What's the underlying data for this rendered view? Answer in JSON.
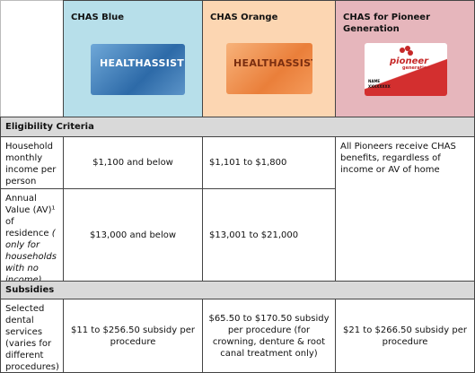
{
  "header": {
    "columns": [
      "CHAS Blue",
      "CHAS Orange",
      "CHAS for Pioneer Generation"
    ],
    "cards": {
      "blue": "HEALTHASSIST",
      "orange": "HEALTHASSIST",
      "pioneer_logo": "pioneer",
      "pioneer_sub": "generation",
      "pioneer_name": "NAME",
      "pioneer_id": "XXXXXXXX"
    }
  },
  "eligibility": {
    "title": "Eligibility Criteria",
    "income": {
      "label": "Household monthly income per person",
      "blue": "$1,100 and below",
      "orange": "$1,101 to $1,800"
    },
    "annual_value": {
      "label": "Annual Value (AV)¹ of residence ",
      "label_note": "( only for households with no income)",
      "blue": "$13,000 and below",
      "orange": "$13,001 to $21,000"
    },
    "pioneer": "All Pioneers receive CHAS benefits, regardless of income or AV of home"
  },
  "subsidies": {
    "title": "Subsidies",
    "dental": {
      "label": "Selected dental services (varies for different procedures)",
      "blue": "$11 to $256.50 subsidy per procedure",
      "orange": "$65.50 to $170.50 subsidy per procedure (for crowning, denture & root canal treatment only)",
      "pioneer": "$21 to $266.50 subsidy per procedure"
    }
  }
}
